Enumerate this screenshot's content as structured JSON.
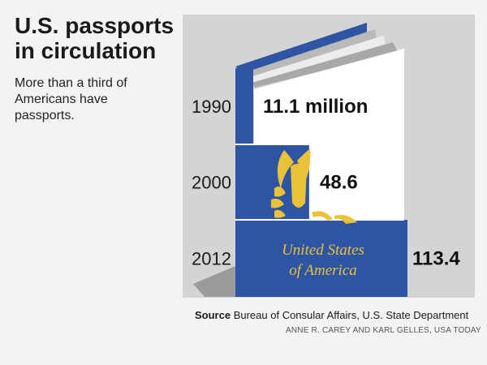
{
  "title": "U.S. passports in circulation",
  "subtitle": "More than a third of Americans have passports.",
  "chart_data": {
    "type": "bar",
    "categories": [
      "1990",
      "2000",
      "2012"
    ],
    "series": [
      {
        "values": [
          11.1,
          48.6,
          113.4
        ]
      }
    ],
    "value_labels": [
      "11.1 million",
      "48.6",
      "113.4"
    ],
    "unit": "million",
    "cover_text": [
      "United States",
      "of America"
    ],
    "colors": {
      "cover": "#2d55a4",
      "gold": "#e9c23a",
      "panel": "#d4d4d4",
      "pages": "#ffffff"
    }
  },
  "source": {
    "label": "Source",
    "text": "Bureau of Consular Affairs, U.S. State Department"
  },
  "credit": "ANNE R. CAREY AND KARL GELLES, USA TODAY"
}
